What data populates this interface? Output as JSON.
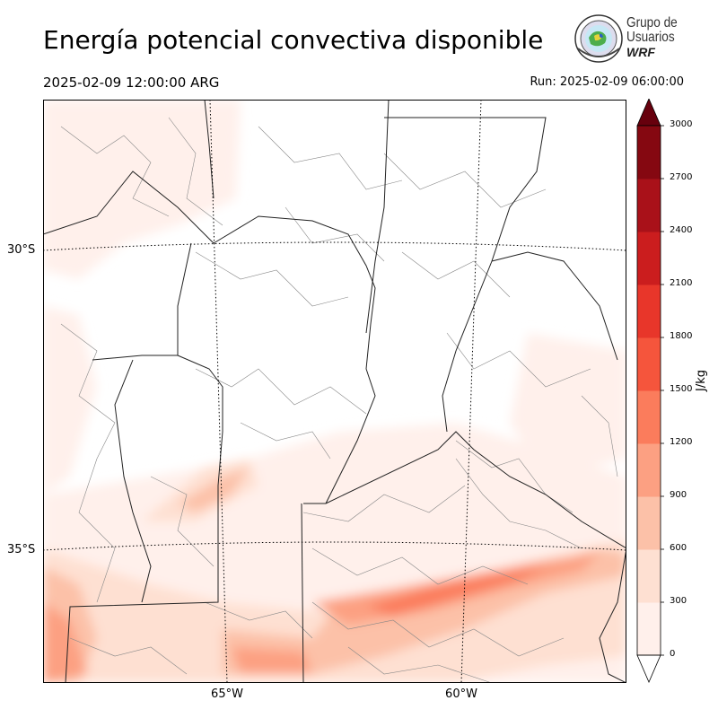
{
  "header": {
    "title": "Energía potencial convectiva disponible",
    "valid_time": "2025-02-09 12:00:00 ARG",
    "run_time": "Run: 2025-02-09 06:00:00"
  },
  "logo": {
    "line1": "Grupo de",
    "line2": "Usuarios",
    "line3": "WRF"
  },
  "map": {
    "lat_labels": [
      "30°S",
      "35°S"
    ],
    "lon_labels": [
      "65°W",
      "60°W"
    ]
  },
  "colorbar": {
    "unit": "J/kg",
    "ticks": [
      "0",
      "300",
      "600",
      "900",
      "1200",
      "1500",
      "1800",
      "2100",
      "2400",
      "2700",
      "3000"
    ],
    "colors": [
      "#fff0eb",
      "#fee0d2",
      "#fcc1a8",
      "#fca082",
      "#fb7c5c",
      "#f5553c",
      "#e8362a",
      "#cb1d1e",
      "#a91119",
      "#850811"
    ],
    "over_color": "#67000d"
  }
}
